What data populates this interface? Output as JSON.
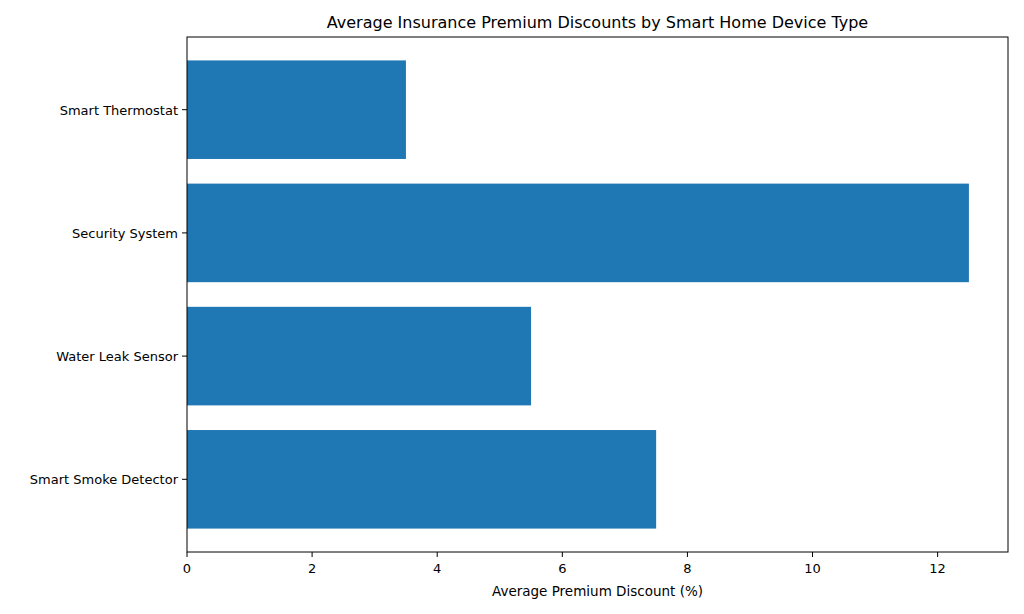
{
  "chart_data": {
    "type": "bar",
    "orientation": "horizontal",
    "title": "Average Insurance Premium Discounts by Smart Home Device Type",
    "x_label": "Average Premium Discount (%)",
    "categories": [
      "Smart Thermostat",
      "Security System",
      "Water Leak Sensor",
      "Smart Smoke Detector"
    ],
    "values": [
      3.5,
      12.5,
      5.5,
      7.5
    ],
    "color": "#1f77b4",
    "xlim": [
      0,
      13.125
    ],
    "xticks": [
      0,
      2,
      4,
      6,
      8,
      10,
      12
    ],
    "grid": false
  }
}
